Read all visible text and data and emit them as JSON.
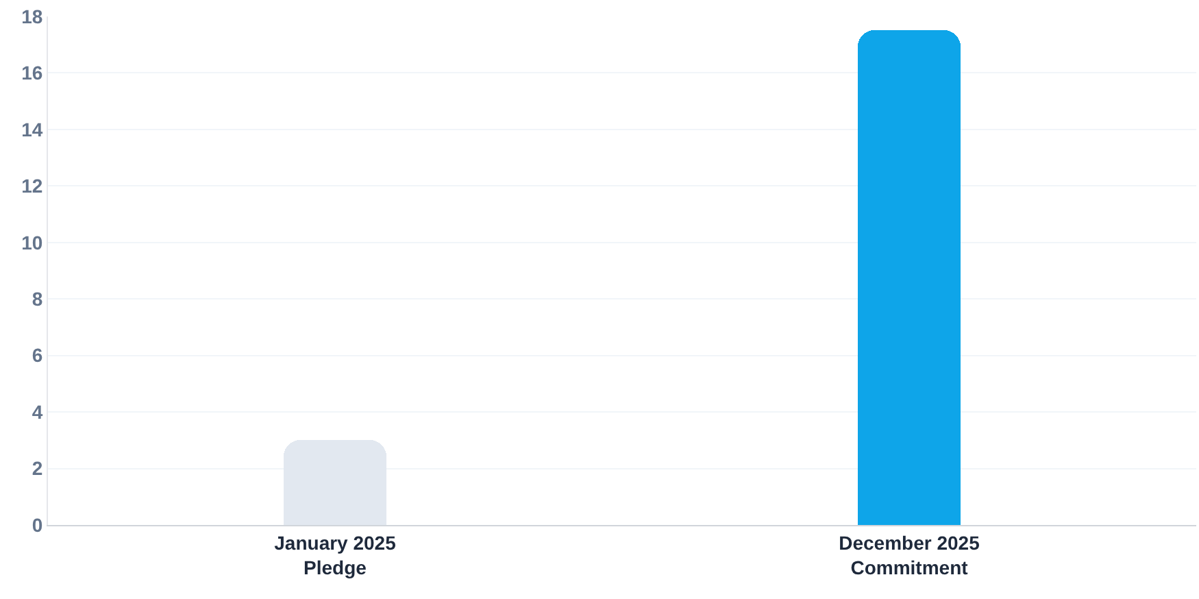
{
  "chart_data": {
    "type": "bar",
    "categories": [
      "January 2025\nPledge",
      "December 2025\nCommitment"
    ],
    "values": [
      3,
      17.5
    ],
    "colors": [
      "#e2e8f0",
      "#0ea5e9"
    ],
    "ylim": [
      0,
      18
    ],
    "yticks": [
      0,
      2,
      4,
      6,
      8,
      10,
      12,
      14,
      16,
      18
    ],
    "grid": "y"
  }
}
